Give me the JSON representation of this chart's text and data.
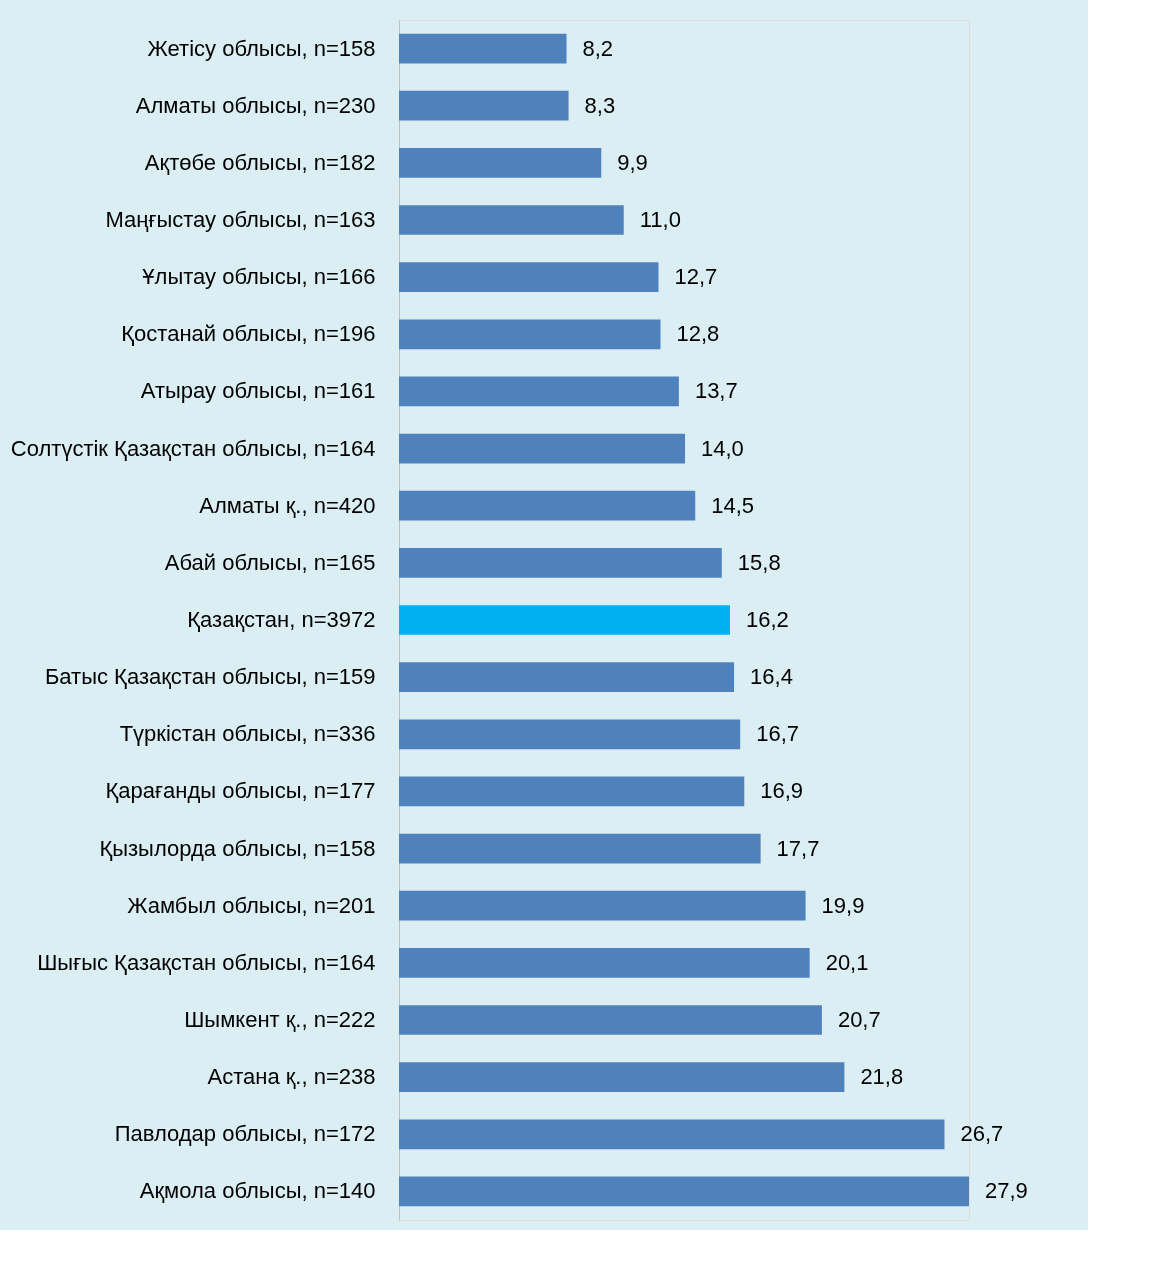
{
  "chart_data": {
    "type": "bar",
    "orientation": "horizontal",
    "categories": [
      "Жетісу облысы, n=158",
      "Алматы облысы, n=230",
      "Ақтөбе облысы, n=182",
      "Маңғыстау облысы, n=163",
      "Ұлытау облысы, n=166",
      "Қостанай облысы, n=196",
      "Атырау облысы, n=161",
      "Солтүстік Қазақстан облысы, n=164",
      "Алматы қ., n=420",
      "Абай облысы, n=165",
      "Қазақстан, n=3972",
      "Батыс Қазақстан облысы, n=159",
      "Түркістан облысы, n=336",
      "Қарағанды облысы, n=177",
      "Қызылорда облысы, n=158",
      "Жамбыл облысы, n=201",
      "Шығыс Қазақстан облысы, n=164",
      "Шымкент қ., n=222",
      "Астана қ., n=238",
      "Павлодар облысы, n=172",
      "Ақмола облысы, n=140"
    ],
    "values": [
      8.2,
      8.3,
      9.9,
      11.0,
      12.7,
      12.8,
      13.7,
      14.0,
      14.5,
      15.8,
      16.2,
      16.4,
      16.7,
      16.9,
      17.7,
      19.9,
      20.1,
      20.7,
      21.8,
      26.7,
      27.9
    ],
    "colors": [
      "#4f81bd",
      "#4f81bd",
      "#4f81bd",
      "#4f81bd",
      "#4f81bd",
      "#4f81bd",
      "#4f81bd",
      "#4f81bd",
      "#4f81bd",
      "#4f81bd",
      "#00b0f0",
      "#4f81bd",
      "#4f81bd",
      "#4f81bd",
      "#4f81bd",
      "#4f81bd",
      "#4f81bd",
      "#4f81bd",
      "#4f81bd",
      "#4f81bd",
      "#4f81bd"
    ],
    "value_labels": [
      "8,2",
      "8,3",
      "9,9",
      "11,0",
      "12,7",
      "12,8",
      "13,7",
      "14,0",
      "14,5",
      "15,8",
      "16,2",
      "16,4",
      "16,7",
      "16,9",
      "17,7",
      "19,9",
      "20,1",
      "20,7",
      "21,8",
      "26,7",
      "27,9"
    ],
    "tick_labels": "y"
  }
}
